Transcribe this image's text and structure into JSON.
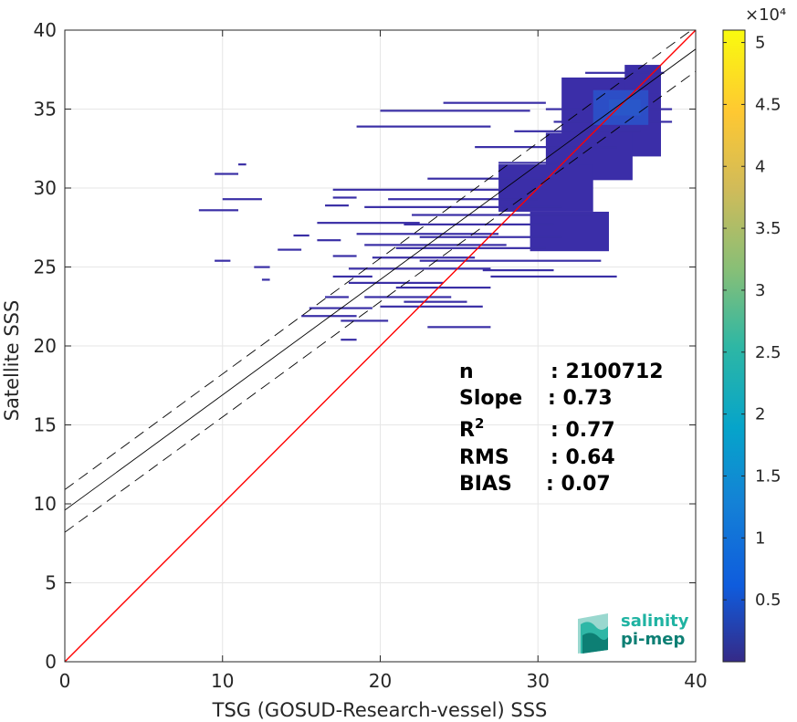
{
  "chart_data": {
    "type": "heatmap",
    "title": "",
    "xlabel": "TSG (GOSUD-Research-vessel) SSS",
    "ylabel": "Satellite SSS",
    "xlim": [
      0,
      40
    ],
    "ylim": [
      0,
      40
    ],
    "x_ticks": [
      "0",
      "10",
      "20",
      "30",
      "40"
    ],
    "y_ticks": [
      "0",
      "5",
      "10",
      "15",
      "20",
      "25",
      "30",
      "35",
      "40"
    ],
    "grid": true,
    "colorbar": {
      "colormap": "parula",
      "range": [
        0,
        51000
      ],
      "exponent_label": "×10⁴",
      "tick_values": [
        0.5,
        1,
        1.5,
        2,
        2.5,
        3,
        3.5,
        4,
        4.5,
        5
      ],
      "tick_labels": [
        "0.5",
        "1",
        "1.5",
        "2",
        "2.5",
        "3",
        "3.5",
        "4",
        "4.5",
        "5"
      ]
    },
    "lines": [
      {
        "role": "one-to-one",
        "color": "#ff0000",
        "style": "solid",
        "x": [
          0,
          40
        ],
        "y": [
          0,
          40
        ]
      },
      {
        "role": "regression",
        "color": "#000000",
        "style": "solid",
        "x": [
          0,
          40
        ],
        "y": [
          9.6,
          38.8
        ]
      },
      {
        "role": "regression-upper",
        "color": "#000000",
        "style": "dashed",
        "x": [
          0,
          40
        ],
        "y": [
          10.9,
          40.2
        ]
      },
      {
        "role": "regression-lower",
        "color": "#000000",
        "style": "dashed",
        "x": [
          0,
          40
        ],
        "y": [
          8.2,
          37.4
        ]
      }
    ],
    "density_cells": [
      {
        "x0": 34.5,
        "x1": 36.5,
        "y0": 34.6,
        "y1": 35.6,
        "level": "high"
      },
      {
        "x0": 33.5,
        "x1": 37.0,
        "y0": 34.0,
        "y1": 36.2,
        "level": "mid"
      },
      {
        "x0": 31.5,
        "x1": 37.8,
        "y0": 32.0,
        "y1": 37.0,
        "level": "low"
      },
      {
        "x0": 35.5,
        "x1": 37.8,
        "y0": 36.0,
        "y1": 37.8,
        "level": "low"
      },
      {
        "x0": 30.5,
        "x1": 36.0,
        "y0": 30.5,
        "y1": 33.5,
        "level": "low"
      },
      {
        "x0": 27.5,
        "x1": 33.5,
        "y0": 28.5,
        "y1": 31.5,
        "level": "low"
      },
      {
        "x0": 29.5,
        "x1": 34.5,
        "y0": 26.0,
        "y1": 28.5,
        "level": "low"
      }
    ],
    "density_strips": [
      {
        "x0": 30.5,
        "x1": 38.5,
        "y": 35.0
      },
      {
        "x0": 28.5,
        "x1": 36.5,
        "y": 33.6
      },
      {
        "x0": 26.0,
        "x1": 35.0,
        "y": 32.6
      },
      {
        "x0": 27.5,
        "x1": 32.0,
        "y": 31.6
      },
      {
        "x0": 20.0,
        "x1": 29.5,
        "y": 34.9
      },
      {
        "x0": 24.0,
        "x1": 30.5,
        "y": 35.4
      },
      {
        "x0": 18.5,
        "x1": 27.0,
        "y": 33.9
      },
      {
        "x0": 23.0,
        "x1": 31.0,
        "y": 30.6
      },
      {
        "x0": 17.0,
        "x1": 28.0,
        "y": 29.9
      },
      {
        "x0": 20.5,
        "x1": 30.0,
        "y": 29.3
      },
      {
        "x0": 17.0,
        "x1": 18.5,
        "y": 29.4
      },
      {
        "x0": 16.5,
        "x1": 18.0,
        "y": 28.9
      },
      {
        "x0": 19.0,
        "x1": 31.5,
        "y": 28.8
      },
      {
        "x0": 22.0,
        "x1": 33.5,
        "y": 28.3
      },
      {
        "x0": 16.0,
        "x1": 22.5,
        "y": 27.8
      },
      {
        "x0": 21.5,
        "x1": 31.0,
        "y": 27.7
      },
      {
        "x0": 18.5,
        "x1": 27.5,
        "y": 27.1
      },
      {
        "x0": 22.5,
        "x1": 31.5,
        "y": 26.9
      },
      {
        "x0": 16.0,
        "x1": 17.5,
        "y": 26.7
      },
      {
        "x0": 19.0,
        "x1": 28.0,
        "y": 26.4
      },
      {
        "x0": 21.0,
        "x1": 30.5,
        "y": 26.2
      },
      {
        "x0": 19.5,
        "x1": 26.0,
        "y": 25.6
      },
      {
        "x0": 22.5,
        "x1": 34.0,
        "y": 25.4
      },
      {
        "x0": 18.0,
        "x1": 27.0,
        "y": 24.9
      },
      {
        "x0": 26.5,
        "x1": 31.0,
        "y": 24.8
      },
      {
        "x0": 27.0,
        "x1": 35.0,
        "y": 24.4
      },
      {
        "x0": 18.0,
        "x1": 24.0,
        "y": 24.0
      },
      {
        "x0": 21.0,
        "x1": 27.0,
        "y": 23.7
      },
      {
        "x0": 19.0,
        "x1": 24.5,
        "y": 23.1
      },
      {
        "x0": 21.5,
        "x1": 25.5,
        "y": 22.8
      },
      {
        "x0": 15.5,
        "x1": 19.5,
        "y": 22.4
      },
      {
        "x0": 20.0,
        "x1": 26.5,
        "y": 22.5
      },
      {
        "x0": 15.0,
        "x1": 18.5,
        "y": 21.9
      },
      {
        "x0": 17.5,
        "x1": 20.5,
        "y": 21.6
      },
      {
        "x0": 23.0,
        "x1": 27.0,
        "y": 21.2
      },
      {
        "x0": 17.5,
        "x1": 18.5,
        "y": 20.4
      },
      {
        "x0": 8.5,
        "x1": 11.0,
        "y": 28.6
      },
      {
        "x0": 10.0,
        "x1": 12.5,
        "y": 29.3
      },
      {
        "x0": 9.5,
        "x1": 11.0,
        "y": 30.9
      },
      {
        "x0": 11.0,
        "x1": 11.5,
        "y": 31.5
      },
      {
        "x0": 9.5,
        "x1": 10.5,
        "y": 25.4
      },
      {
        "x0": 12.0,
        "x1": 13.0,
        "y": 25.0
      },
      {
        "x0": 12.5,
        "x1": 13.0,
        "y": 24.2
      },
      {
        "x0": 14.5,
        "x1": 15.5,
        "y": 27.0
      },
      {
        "x0": 13.5,
        "x1": 15.0,
        "y": 26.1
      },
      {
        "x0": 17.0,
        "x1": 18.5,
        "y": 25.7
      },
      {
        "x0": 16.5,
        "x1": 18.0,
        "y": 23.1
      },
      {
        "x0": 17.0,
        "x1": 19.5,
        "y": 24.4
      },
      {
        "x0": 33.0,
        "x1": 38.0,
        "y": 37.3
      },
      {
        "x0": 31.0,
        "x1": 38.5,
        "y": 34.2
      }
    ],
    "annotation": [
      {
        "label": "n",
        "value": ": 2100712"
      },
      {
        "label": "Slope",
        "value": ": 0.73"
      },
      {
        "label": "R",
        "superscript": "2",
        "value": ": 0.77"
      },
      {
        "label": "RMS",
        "value": ": 0.64"
      },
      {
        "label": "BIAS",
        "value": ": 0.07"
      }
    ]
  },
  "logo": {
    "line1": "salinity",
    "line2": "pi-mep",
    "color1": "#1fb3a2",
    "color2": "#0d7f74"
  }
}
